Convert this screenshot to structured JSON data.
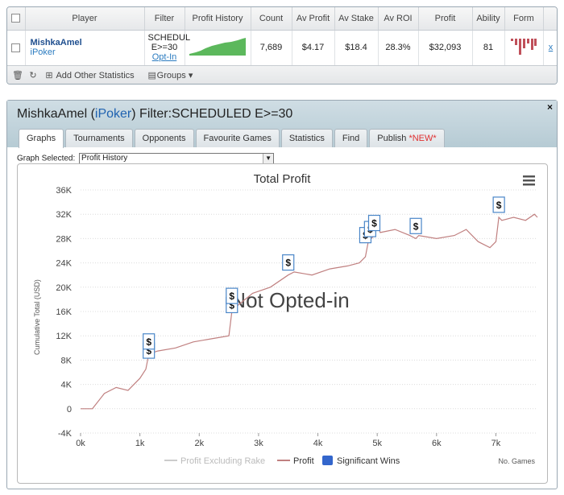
{
  "table": {
    "headers": [
      "",
      "Player",
      "Filter",
      "Profit History",
      "Count",
      "Av Profit",
      "Av Stake",
      "Av ROI",
      "Profit",
      "Ability",
      "Form",
      ""
    ],
    "row": {
      "player": "MishkaAmel",
      "site": "iPoker",
      "filter_line1": "SCHEDUL",
      "filter_line2": "E>=30",
      "filter_link": "Opt-In",
      "count": "7,689",
      "av_profit": "$4.17",
      "av_stake": "$18.4",
      "av_roi": "28.3%",
      "profit": "$32,093",
      "ability": "81",
      "action_icon": "x"
    }
  },
  "toolbar": {
    "add_stats": "Add Other Statistics",
    "groups": "Groups"
  },
  "panel": {
    "title_prefix": "MishkaAmel (",
    "title_link": "iPoker",
    "title_suffix": ") Filter:SCHEDULED E>=30",
    "close": "×",
    "tabs": [
      "Graphs",
      "Tournaments",
      "Opponents",
      "Favourite Games",
      "Statistics",
      "Find",
      "Publish "
    ],
    "publish_new": "*NEW*",
    "graph_selected_label": "Graph Selected:",
    "graph_selected_value": "Profit History"
  },
  "chart_data": {
    "type": "line",
    "title": "Total Profit",
    "watermark": "Not Opted-in",
    "ylabel": "Cumulative Total (USD)",
    "xlabel": "No. Games",
    "y_ticks": [
      "36K",
      "32K",
      "28K",
      "24K",
      "20K",
      "16K",
      "12K",
      "8K",
      "4K",
      "0",
      "-4K"
    ],
    "x_ticks": [
      "0k",
      "1k",
      "2k",
      "3k",
      "4k",
      "5k",
      "6k",
      "7k"
    ],
    "ylim": [
      -4000,
      36000
    ],
    "xlim": [
      0,
      7700
    ],
    "legend": [
      "Profit Excluding Rake",
      "Profit",
      "Significant Wins"
    ],
    "series": [
      {
        "name": "Profit",
        "color": "#c08080",
        "x": [
          0,
          200,
          400,
          600,
          800,
          1000,
          1100,
          1150,
          1300,
          1600,
          1900,
          2200,
          2500,
          2550,
          2650,
          2900,
          3200,
          3500,
          3600,
          3900,
          4200,
          4500,
          4700,
          4800,
          4850,
          4950,
          5000,
          5050,
          5300,
          5550,
          5650,
          5700,
          6000,
          6300,
          6500,
          6700,
          6900,
          7000,
          7050,
          7100,
          7300,
          7500,
          7650,
          7700
        ],
        "y": [
          0,
          0,
          2500,
          3500,
          3000,
          5000,
          6500,
          9000,
          9500,
          10000,
          11000,
          11500,
          12000,
          16000,
          17000,
          19000,
          20000,
          22000,
          22500,
          22000,
          23000,
          23500,
          24000,
          25000,
          27500,
          28500,
          30500,
          29000,
          29500,
          28500,
          28000,
          28500,
          28000,
          28500,
          29500,
          27500,
          26500,
          27500,
          31500,
          31000,
          31500,
          31000,
          32000,
          31500
        ]
      }
    ],
    "significant_wins_x": [
      1150,
      1150,
      2550,
      2550,
      3500,
      4800,
      4880,
      4950,
      5650,
      7050
    ],
    "significant_wins_y": [
      9500,
      11000,
      17000,
      18500,
      24000,
      28500,
      29500,
      30500,
      30000,
      33500
    ]
  },
  "colors": {
    "accent": "#1f62b0",
    "panel_header": "#c3d5dd",
    "line": "#c08080",
    "sig_wins": "#3366cc",
    "sparkline": "#5cb85c",
    "form": "#c0505a"
  },
  "icons": {
    "delete": "trash-icon",
    "refresh": "refresh-icon",
    "add": "add-stats-icon",
    "groups": "groups-icon",
    "menu": "hamburger-menu-icon",
    "dollar": "dollar-marker-icon"
  }
}
